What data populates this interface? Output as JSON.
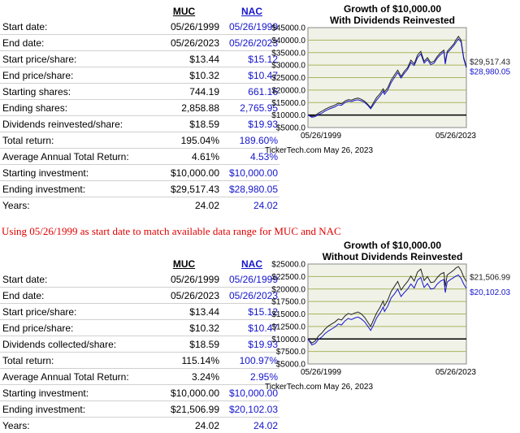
{
  "table1": {
    "header": [
      "MUC",
      "NAC"
    ],
    "rows": [
      {
        "label": "Start date:",
        "muc": "05/26/1999",
        "nac": "05/26/1999"
      },
      {
        "label": "End date:",
        "muc": "05/26/2023",
        "nac": "05/26/2023"
      },
      {
        "label": "Start price/share:",
        "muc": "$13.44",
        "nac": "$15.12"
      },
      {
        "label": "End price/share:",
        "muc": "$10.32",
        "nac": "$10.47"
      },
      {
        "label": "Starting shares:",
        "muc": "744.19",
        "nac": "661.16"
      },
      {
        "label": "Ending shares:",
        "muc": "2,858.88",
        "nac": "2,765.95"
      },
      {
        "label": "Dividends reinvested/share:",
        "muc": "$18.59",
        "nac": "$19.93"
      },
      {
        "label": "Total return:",
        "muc": "195.04%",
        "nac": "189.60%"
      },
      {
        "label": "Average Annual Total Return:",
        "muc": "4.61%",
        "nac": "4.53%"
      },
      {
        "label": "Starting investment:",
        "muc": "$10,000.00",
        "nac": "$10,000.00"
      },
      {
        "label": "Ending investment:",
        "muc": "$29,517.43",
        "nac": "$28,980.05"
      },
      {
        "label": "Years:",
        "muc": "24.02",
        "nac": "24.02"
      }
    ]
  },
  "note": "Using 05/26/1999 as start date to match available data range for MUC and NAC",
  "table2": {
    "header": [
      "MUC",
      "NAC"
    ],
    "rows": [
      {
        "label": "Start date:",
        "muc": "05/26/1999",
        "nac": "05/26/1999"
      },
      {
        "label": "End date:",
        "muc": "05/26/2023",
        "nac": "05/26/2023"
      },
      {
        "label": "Start price/share:",
        "muc": "$13.44",
        "nac": "$15.12"
      },
      {
        "label": "End price/share:",
        "muc": "$10.32",
        "nac": "$10.47"
      },
      {
        "label": "Dividends collected/share:",
        "muc": "$18.59",
        "nac": "$19.93"
      },
      {
        "label": "Total return:",
        "muc": "115.14%",
        "nac": "100.97%"
      },
      {
        "label": "Average Annual Total Return:",
        "muc": "3.24%",
        "nac": "2.95%"
      },
      {
        "label": "Starting investment:",
        "muc": "$10,000.00",
        "nac": "$10,000.00"
      },
      {
        "label": "Ending investment:",
        "muc": "$21,506.99",
        "nac": "$20,102.03"
      },
      {
        "label": "Years:",
        "muc": "24.02",
        "nac": "24.02"
      }
    ]
  },
  "colors": {
    "muc": "#222222",
    "nac": "#1515cc",
    "plot_bg": "#f0f2e8",
    "grid": "#a8b45a",
    "baseline": "#000000",
    "note": "#e00000"
  },
  "chart_data": [
    {
      "type": "line",
      "title_line1": "Growth of $10,000.00",
      "title_line2": "With Dividends Reinvested",
      "x_start_label": "05/26/1999",
      "x_end_label": "05/26/2023",
      "watermark": "TickerTech.com  May 26, 2023",
      "ylim": [
        5000,
        45000
      ],
      "yticks": [
        5000,
        10000,
        15000,
        20000,
        25000,
        30000,
        35000,
        40000,
        45000
      ],
      "ytick_labels": [
        "$5000.0",
        "$10000.0",
        "$15000.0",
        "$20000.0",
        "$25000.0",
        "$30000.0",
        "$35000.0",
        "$40000.0",
        "$45000.0"
      ],
      "baseline": 10000,
      "end_labels": [
        "$29,517.43",
        "$28,980.05"
      ],
      "x": [
        1999.4,
        2000.0,
        2000.5,
        2001.0,
        2001.5,
        2002.0,
        2002.5,
        2003.0,
        2003.5,
        2004.0,
        2004.5,
        2005.0,
        2005.5,
        2006.0,
        2006.5,
        2007.0,
        2007.5,
        2008.0,
        2008.5,
        2008.9,
        2009.3,
        2009.8,
        2010.3,
        2010.8,
        2011.0,
        2011.5,
        2012.0,
        2012.5,
        2013.0,
        2013.5,
        2014.0,
        2014.5,
        2015.0,
        2015.5,
        2016.0,
        2016.5,
        2017.0,
        2017.5,
        2018.0,
        2018.5,
        2019.0,
        2019.5,
        2020.0,
        2020.2,
        2020.5,
        2021.0,
        2021.5,
        2021.8,
        2022.2,
        2022.6,
        2023.0,
        2023.4
      ],
      "series": [
        {
          "name": "MUC",
          "values": [
            10000,
            9500,
            9800,
            10800,
            11500,
            12300,
            13000,
            13500,
            14000,
            14800,
            14500,
            15600,
            16200,
            16000,
            16500,
            16800,
            16300,
            15500,
            14200,
            13000,
            14800,
            17000,
            18500,
            20500,
            19200,
            21000,
            24000,
            26000,
            28000,
            25500,
            27500,
            29000,
            32000,
            30500,
            34000,
            35500,
            31500,
            33000,
            31000,
            31500,
            33500,
            35000,
            36000,
            31000,
            35500,
            37000,
            38500,
            40000,
            41500,
            40000,
            33000,
            29517
          ]
        },
        {
          "name": "NAC",
          "values": [
            10000,
            9100,
            9400,
            10200,
            10800,
            11600,
            12300,
            12800,
            13300,
            14100,
            13900,
            15000,
            15600,
            15400,
            15900,
            16100,
            15700,
            15000,
            13800,
            12500,
            14000,
            16000,
            17600,
            19500,
            18300,
            20000,
            23000,
            25000,
            27000,
            24800,
            26700,
            28300,
            31000,
            29800,
            33000,
            34500,
            30800,
            32200,
            30200,
            30800,
            32800,
            34200,
            35300,
            30400,
            34800,
            36300,
            37800,
            39000,
            40500,
            39200,
            32500,
            28980
          ]
        }
      ]
    },
    {
      "type": "line",
      "title_line1": "Growth of $10,000.00",
      "title_line2": "Without Dividends Reinvested",
      "x_start_label": "05/26/1999",
      "x_end_label": "05/26/2023",
      "watermark": "TickerTech.com  May 26, 2023",
      "ylim": [
        5000,
        25000
      ],
      "yticks": [
        5000,
        7500,
        10000,
        12500,
        15000,
        17500,
        20000,
        22500,
        25000
      ],
      "ytick_labels": [
        "$5000.0",
        "$7500.0",
        "$10000.0",
        "$12500.0",
        "$15000.0",
        "$17500.0",
        "$20000.0",
        "$22500.0",
        "$25000.0"
      ],
      "baseline": 10000,
      "end_labels": [
        "$21,506.99",
        "$20,102.03"
      ],
      "x": [
        1999.4,
        2000.0,
        2000.5,
        2001.0,
        2001.5,
        2002.0,
        2002.5,
        2003.0,
        2003.5,
        2004.0,
        2004.5,
        2005.0,
        2005.5,
        2006.0,
        2006.5,
        2007.0,
        2007.5,
        2008.0,
        2008.5,
        2008.9,
        2009.3,
        2009.8,
        2010.3,
        2010.8,
        2011.0,
        2011.5,
        2012.0,
        2012.5,
        2013.0,
        2013.5,
        2014.0,
        2014.5,
        2015.0,
        2015.5,
        2016.0,
        2016.5,
        2017.0,
        2017.5,
        2018.0,
        2018.5,
        2019.0,
        2019.5,
        2020.0,
        2020.2,
        2020.5,
        2021.0,
        2021.5,
        2021.8,
        2022.2,
        2022.6,
        2023.0,
        2023.4
      ],
      "series": [
        {
          "name": "MUC",
          "values": [
            10000,
            9200,
            9600,
            10600,
            11200,
            12000,
            12600,
            13000,
            13400,
            14000,
            13800,
            14600,
            15100,
            14900,
            15200,
            15400,
            15000,
            14300,
            13300,
            12500,
            13700,
            15200,
            16300,
            17600,
            16600,
            17800,
            19500,
            20500,
            21500,
            19800,
            20700,
            21500,
            22600,
            21600,
            23400,
            24000,
            21700,
            22500,
            21300,
            21400,
            22300,
            23000,
            23300,
            20500,
            22800,
            23300,
            23800,
            24200,
            24500,
            23700,
            22400,
            21507
          ]
        },
        {
          "name": "NAC",
          "values": [
            10000,
            8800,
            9100,
            9900,
            10400,
            11100,
            11600,
            12000,
            12400,
            13000,
            12800,
            13600,
            14100,
            13900,
            14200,
            14400,
            14000,
            13400,
            12500,
            11700,
            12700,
            14200,
            15200,
            16400,
            15500,
            16600,
            18200,
            19000,
            20000,
            18500,
            19300,
            20000,
            21000,
            20200,
            21800,
            22300,
            20300,
            21100,
            20000,
            20100,
            21000,
            21600,
            21900,
            19300,
            21400,
            21900,
            22300,
            22600,
            22800,
            22100,
            21000,
            20102
          ]
        }
      ]
    }
  ]
}
